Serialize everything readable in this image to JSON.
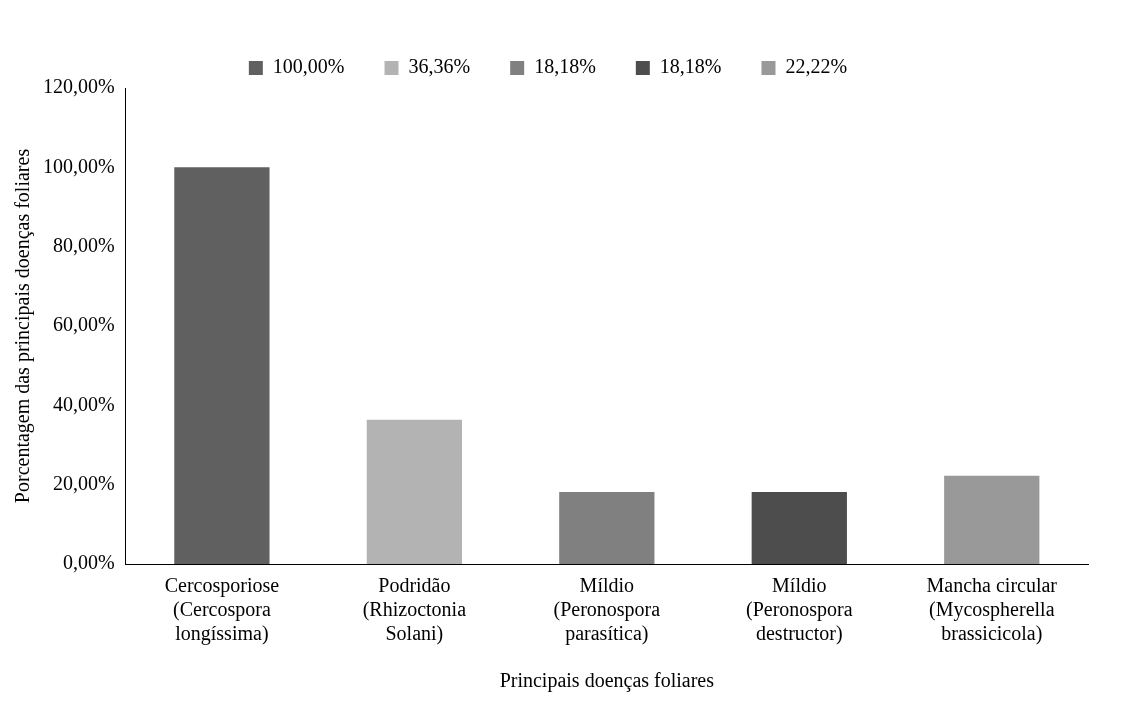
{
  "chart_data": {
    "type": "bar",
    "xlabel": "Principais doenças foliares",
    "ylabel": "Porcentagem das principais doenças foliares",
    "categories": [
      "Cercosporiose\n(Cercospora\nlongíssima)",
      "Podridão\n(Rhizoctonia\nSolani)",
      "Míldio\n(Peronospora\nparasítica)",
      "Míldio\n(Peronospora\ndestructor)",
      "Mancha circular\n(Mycospherella\nbrassicicola)"
    ],
    "series": [
      {
        "name": "100,00%",
        "color": "#606060",
        "values": [
          100,
          null,
          null,
          null,
          null
        ]
      },
      {
        "name": "36,36%",
        "color": "#b3b3b3",
        "values": [
          null,
          36.36,
          null,
          null,
          null
        ]
      },
      {
        "name": "18,18%",
        "color": "#808080",
        "values": [
          null,
          null,
          18.18,
          null,
          null
        ]
      },
      {
        "name": "18,18%",
        "color": "#4d4d4d",
        "values": [
          null,
          null,
          null,
          18.18,
          null
        ]
      },
      {
        "name": "22,22%",
        "color": "#999999",
        "values": [
          null,
          null,
          null,
          null,
          22.22
        ]
      }
    ],
    "ylim": [
      0,
      120
    ],
    "yticks": [
      {
        "value": 0,
        "label": "0,00%"
      },
      {
        "value": 20,
        "label": "20,00%"
      },
      {
        "value": 40,
        "label": "40,00%"
      },
      {
        "value": 60,
        "label": "60,00%"
      },
      {
        "value": 80,
        "label": "80,00%"
      },
      {
        "value": 100,
        "label": "100,00%"
      },
      {
        "value": 120,
        "label": "120,00%"
      }
    ],
    "grid": false,
    "legend": "top"
  }
}
